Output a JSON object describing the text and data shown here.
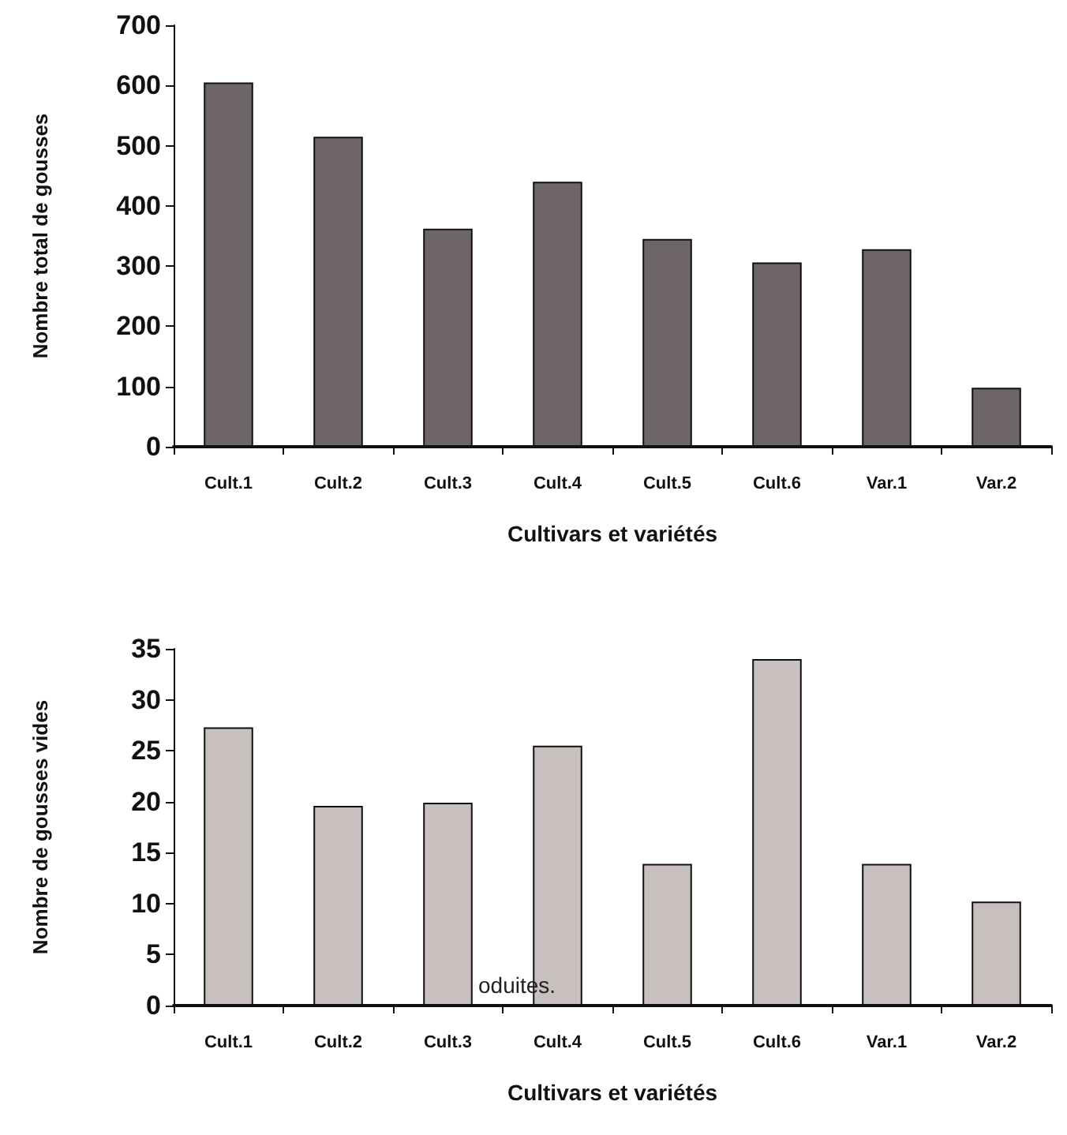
{
  "chart_data": [
    {
      "type": "bar",
      "categories": [
        "Cult.1",
        "Cult.2",
        "Cult.3",
        "Cult.4",
        "Cult.5",
        "Cult.6",
        "Var.1",
        "Var.2"
      ],
      "values": [
        605,
        515,
        362,
        440,
        345,
        306,
        328,
        98
      ],
      "color": "#6e6666",
      "ylim": [
        0,
        700
      ],
      "yticks": [
        0,
        100,
        200,
        300,
        400,
        500,
        600,
        700
      ],
      "xlabel": "Cultivars et variétés",
      "ylabel": "Nombre total de gousses"
    },
    {
      "type": "bar",
      "categories": [
        "Cult.1",
        "Cult.2",
        "Cult.3",
        "Cult.4",
        "Cult.5",
        "Cult.6",
        "Var.1",
        "Var.2"
      ],
      "values": [
        27.3,
        19.6,
        19.9,
        25.5,
        13.9,
        34,
        13.9,
        10.2
      ],
      "color": "#c8bfbf",
      "ylim": [
        0,
        35
      ],
      "yticks": [
        0,
        5,
        10,
        15,
        20,
        25,
        30,
        35
      ],
      "xlabel": "Cultivars et variétés",
      "ylabel": "Nombre de gousses vides",
      "annotations": [
        "oduites."
      ]
    }
  ]
}
